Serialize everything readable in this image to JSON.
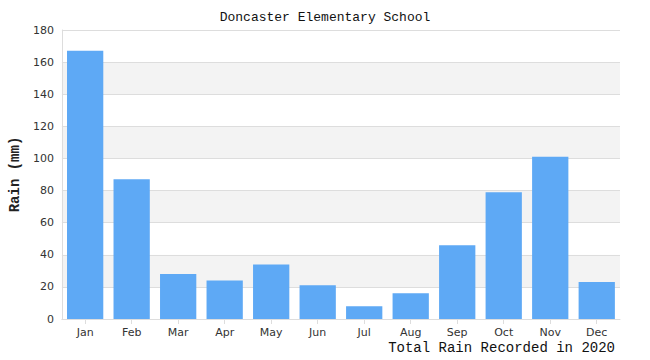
{
  "chart_data": {
    "type": "bar",
    "title": "Doncaster Elementary School",
    "x_label": "Total Rain Recorded in 2020",
    "y_label": "Rain (mm)",
    "categories": [
      "Jan",
      "Feb",
      "Mar",
      "Apr",
      "May",
      "Jun",
      "Jul",
      "Aug",
      "Sep",
      "Oct",
      "Nov",
      "Dec"
    ],
    "values": [
      167,
      87,
      28,
      24,
      34,
      21,
      8,
      16,
      46,
      79,
      101,
      23
    ],
    "color": "#5ea9f5",
    "ylim": [
      0,
      180
    ],
    "yticks": [
      0,
      20,
      40,
      60,
      80,
      100,
      120,
      140,
      160,
      180
    ],
    "grid": true
  }
}
